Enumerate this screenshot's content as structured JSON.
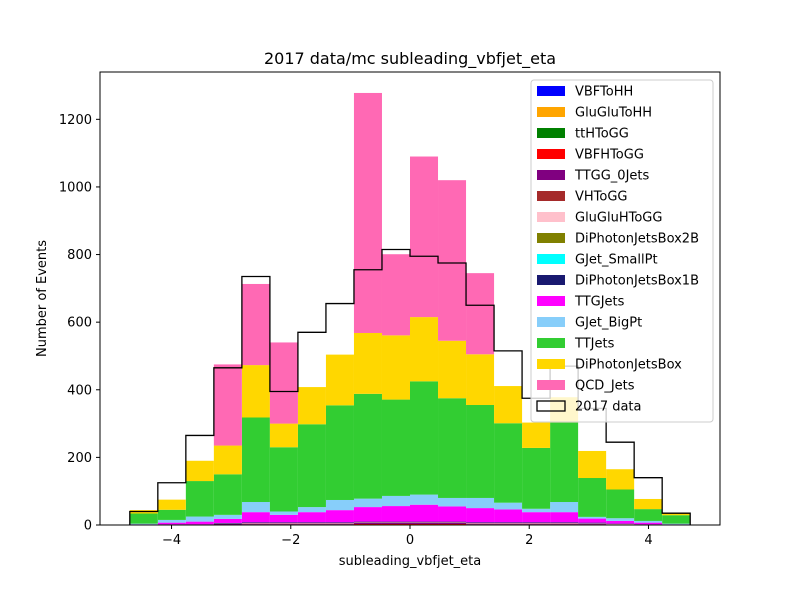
{
  "chart_data": {
    "type": "bar",
    "title": "2017 data/mc subleading_vbfjet_eta",
    "xlabel": "subleading_vbfjet_eta",
    "ylabel": "Number of Events",
    "xlim": [
      -5.2,
      5.2
    ],
    "ylim": [
      0,
      1340
    ],
    "x_ticks": [
      -4,
      -2,
      0,
      2,
      4
    ],
    "x_tick_labels": [
      "−4",
      "−2",
      "0",
      "2",
      "4"
    ],
    "y_ticks": [
      0,
      200,
      400,
      600,
      800,
      1000,
      1200
    ],
    "y_tick_labels": [
      "0",
      "200",
      "400",
      "600",
      "800",
      "1000",
      "1200"
    ],
    "bin_edges": [
      -4.7,
      -4.23,
      -3.76,
      -3.29,
      -2.82,
      -2.35,
      -1.88,
      -1.41,
      -0.94,
      -0.47,
      0.0,
      0.47,
      0.94,
      1.41,
      1.88,
      2.35,
      2.82,
      3.29,
      3.76,
      4.23,
      4.7
    ],
    "legend_position": "upper right",
    "grid": false,
    "stacked": true,
    "series": [
      {
        "name": "VBFToHH",
        "color": "#0000ff",
        "values": [
          0,
          0,
          0,
          0,
          0,
          0,
          0,
          0,
          0,
          0,
          0,
          0,
          0,
          0,
          0,
          0,
          0,
          0,
          0,
          0
        ]
      },
      {
        "name": "GluGluToHH",
        "color": "#ffa500",
        "values": [
          0,
          0,
          0,
          0,
          0,
          0,
          0,
          0,
          0,
          0,
          0,
          0,
          0,
          0,
          0,
          0,
          0,
          0,
          0,
          0
        ]
      },
      {
        "name": "ttHToGG",
        "color": "#008000",
        "values": [
          0,
          0,
          0,
          1,
          1,
          1,
          1,
          1,
          1,
          1,
          1,
          1,
          1,
          1,
          1,
          1,
          1,
          1,
          0,
          0
        ]
      },
      {
        "name": "VBFHToGG",
        "color": "#ff0000",
        "values": [
          0,
          0,
          0,
          0,
          1,
          1,
          1,
          1,
          2,
          2,
          2,
          2,
          1,
          1,
          1,
          1,
          1,
          0,
          0,
          0
        ]
      },
      {
        "name": "TTGG_0Jets",
        "color": "#800080",
        "values": [
          1,
          1,
          1,
          2,
          2,
          2,
          2,
          2,
          3,
          3,
          3,
          3,
          2,
          2,
          2,
          2,
          2,
          1,
          1,
          1
        ]
      },
      {
        "name": "VHToGG",
        "color": "#a52a2a",
        "values": [
          0,
          0,
          0,
          0,
          1,
          1,
          1,
          1,
          1,
          1,
          1,
          1,
          1,
          1,
          1,
          1,
          0,
          0,
          0,
          0
        ]
      },
      {
        "name": "GluGluHToGG",
        "color": "#ffc0cb",
        "values": [
          0,
          0,
          0,
          1,
          1,
          1,
          1,
          1,
          1,
          1,
          1,
          1,
          1,
          1,
          1,
          1,
          1,
          1,
          0,
          0
        ]
      },
      {
        "name": "DiPhotonJetsBox2B",
        "color": "#808000",
        "values": [
          0,
          0,
          0,
          0,
          0,
          0,
          0,
          0,
          0,
          0,
          0,
          0,
          0,
          0,
          0,
          0,
          0,
          0,
          0,
          0
        ]
      },
      {
        "name": "GJet_SmallPt",
        "color": "#00ffff",
        "values": [
          0,
          0,
          0,
          0,
          0,
          0,
          0,
          0,
          0,
          0,
          0,
          0,
          0,
          0,
          0,
          0,
          0,
          0,
          0,
          0
        ]
      },
      {
        "name": "DiPhotonJetsBox1B",
        "color": "#191970",
        "values": [
          0,
          1,
          1,
          2,
          2,
          2,
          2,
          2,
          2,
          2,
          2,
          2,
          2,
          2,
          2,
          2,
          2,
          1,
          1,
          0
        ]
      },
      {
        "name": "TTGJets",
        "color": "#ff00ff",
        "values": [
          1,
          5,
          8,
          12,
          30,
          22,
          30,
          36,
          43,
          46,
          50,
          45,
          42,
          38,
          30,
          30,
          12,
          8,
          5,
          1
        ]
      },
      {
        "name": "GJet_BigPt",
        "color": "#87cefa",
        "values": [
          2,
          8,
          15,
          12,
          30,
          10,
          15,
          30,
          25,
          30,
          30,
          25,
          30,
          20,
          10,
          30,
          5,
          8,
          5,
          2
        ]
      },
      {
        "name": "TTJets",
        "color": "#32cd32",
        "values": [
          30,
          30,
          105,
          120,
          250,
          190,
          245,
          280,
          310,
          285,
          335,
          295,
          275,
          235,
          180,
          235,
          115,
          85,
          35,
          25
        ]
      },
      {
        "name": "DiPhotonJetsBox",
        "color": "#ffd700",
        "values": [
          10,
          30,
          60,
          85,
          155,
          70,
          110,
          150,
          180,
          190,
          190,
          170,
          150,
          110,
          75,
          75,
          80,
          60,
          30,
          8
        ]
      },
      {
        "name": "QCD_Jets",
        "color": "#ff69b4",
        "values": [
          0,
          0,
          0,
          240,
          240,
          240,
          0,
          0,
          710,
          240,
          475,
          475,
          240,
          0,
          0,
          0,
          0,
          0,
          0,
          0
        ]
      }
    ],
    "data_series": {
      "name": "2017 data",
      "color": "#000000",
      "values": [
        40,
        125,
        265,
        465,
        735,
        395,
        570,
        655,
        755,
        815,
        795,
        775,
        650,
        515,
        375,
        470,
        345,
        245,
        140,
        35
      ]
    }
  }
}
